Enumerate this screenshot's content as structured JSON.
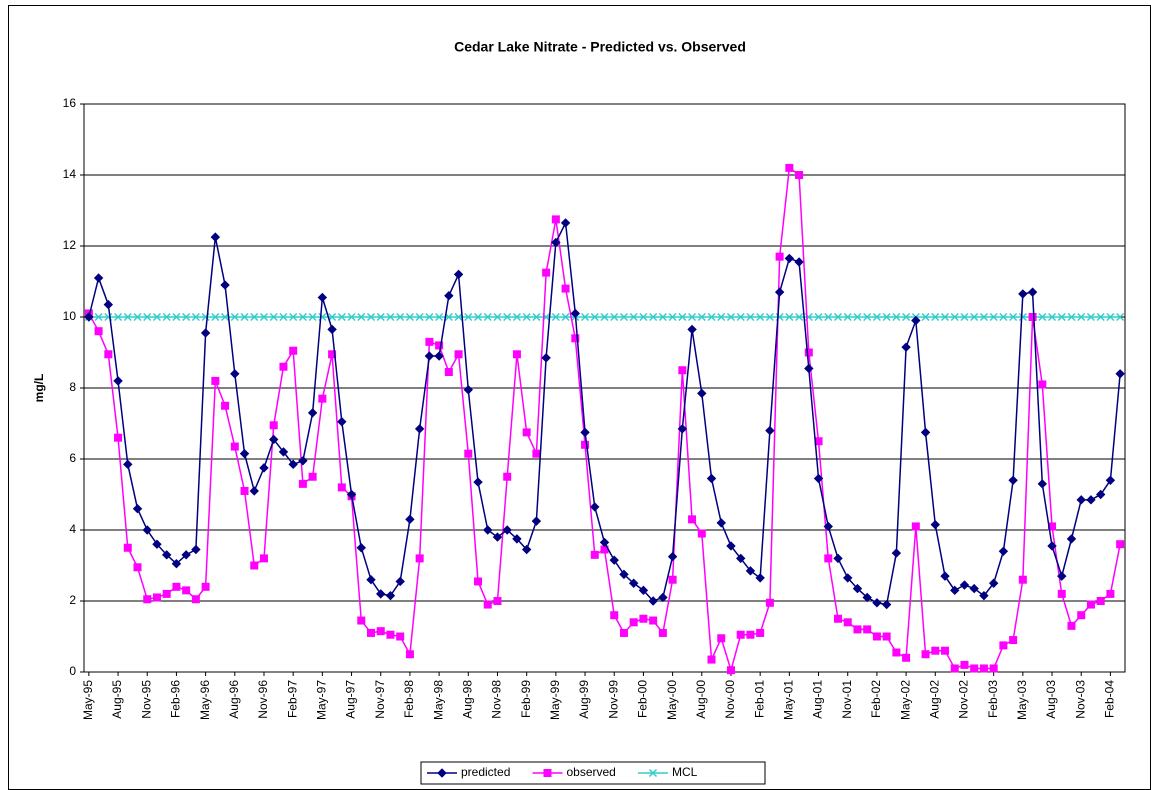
{
  "chart_data": {
    "type": "line",
    "title": "Cedar Lake Nitrate - Predicted vs. Observed",
    "y_label": "mg/L",
    "categories": [
      "May-95",
      null,
      null,
      "Aug-95",
      null,
      null,
      "Nov-95",
      null,
      null,
      "Feb-96",
      null,
      null,
      "May-96",
      null,
      null,
      "Aug-96",
      null,
      null,
      "Nov-96",
      null,
      null,
      "Feb-97",
      null,
      null,
      "May-97",
      null,
      null,
      "Aug-97",
      null,
      null,
      "Nov-97",
      null,
      null,
      "Feb-98",
      null,
      null,
      "May-98",
      null,
      null,
      "Aug-98",
      null,
      null,
      "Nov-98",
      null,
      null,
      "Feb-99",
      null,
      null,
      "May-99",
      null,
      null,
      "Aug-99",
      null,
      null,
      "Nov-99",
      null,
      null,
      "Feb-00",
      null,
      null,
      "May-00",
      null,
      null,
      "Aug-00",
      null,
      null,
      "Nov-00",
      null,
      null,
      "Feb-01",
      null,
      null,
      "May-01",
      null,
      null,
      "Aug-01",
      null,
      null,
      "Nov-01",
      null,
      null,
      "Feb-02",
      null,
      null,
      "May-02",
      null,
      null,
      "Aug-02",
      null,
      null,
      "Nov-02",
      null,
      null,
      "Feb-03",
      null,
      null,
      "May-03",
      null,
      null,
      "Aug-03",
      null,
      null,
      "Nov-03",
      null,
      null,
      "Feb-04",
      null
    ],
    "series": [
      {
        "name": "predicted",
        "color": "#000080",
        "marker": "diamond",
        "values": [
          10.0,
          11.1,
          10.35,
          8.2,
          5.85,
          4.6,
          4.0,
          3.6,
          3.3,
          3.05,
          3.3,
          3.45,
          9.55,
          12.25,
          10.9,
          8.4,
          6.15,
          5.1,
          5.75,
          6.55,
          6.2,
          5.85,
          5.95,
          7.3,
          10.55,
          9.65,
          7.05,
          5.0,
          3.5,
          2.6,
          2.2,
          2.15,
          2.55,
          4.3,
          6.85,
          8.9,
          8.9,
          10.6,
          11.2,
          7.95,
          5.35,
          4.0,
          3.8,
          4.0,
          3.75,
          3.45,
          4.25,
          8.85,
          12.1,
          12.65,
          10.1,
          6.75,
          4.65,
          3.65,
          3.15,
          2.75,
          2.5,
          2.3,
          2.0,
          2.1,
          3.25,
          6.85,
          9.65,
          7.85,
          5.45,
          4.2,
          3.55,
          3.2,
          2.85,
          2.65,
          6.8,
          10.7,
          11.65,
          11.55,
          8.55,
          5.45,
          4.1,
          3.2,
          2.65,
          2.35,
          2.1,
          1.95,
          1.9,
          3.35,
          9.15,
          9.9,
          6.75,
          4.15,
          2.7,
          2.3,
          2.45,
          2.35,
          2.15,
          2.5,
          3.4,
          5.4,
          10.65,
          10.7,
          5.3,
          3.55,
          2.7,
          3.75,
          4.85,
          4.85,
          5.0,
          5.4,
          8.4
        ]
      },
      {
        "name": "observed",
        "color": "#FF00FF",
        "marker": "square",
        "values": [
          10.1,
          9.6,
          8.95,
          6.6,
          3.5,
          2.95,
          2.05,
          2.1,
          2.2,
          2.4,
          2.3,
          2.05,
          2.4,
          8.2,
          7.5,
          6.35,
          5.1,
          3.0,
          3.2,
          6.95,
          8.6,
          9.05,
          5.3,
          5.5,
          7.7,
          8.95,
          5.2,
          4.95,
          1.45,
          1.1,
          1.15,
          1.05,
          1.0,
          0.5,
          3.2,
          9.3,
          9.2,
          8.45,
          8.95,
          6.15,
          2.55,
          1.9,
          2.0,
          5.5,
          8.95,
          6.75,
          6.15,
          11.25,
          12.75,
          10.8,
          9.4,
          6.4,
          3.3,
          3.45,
          1.6,
          1.1,
          1.4,
          1.5,
          1.45,
          1.1,
          2.6,
          8.5,
          4.3,
          3.9,
          0.35,
          0.95,
          0.05,
          1.05,
          1.05,
          1.1,
          1.95,
          11.7,
          14.2,
          14.0,
          9.0,
          6.5,
          3.2,
          1.5,
          1.4,
          1.2,
          1.2,
          1.0,
          1.0,
          0.55,
          0.4,
          4.1,
          0.5,
          0.6,
          0.6,
          0.1,
          0.2,
          0.1,
          0.1,
          0.1,
          0.75,
          0.9,
          2.6,
          10.0,
          8.1,
          4.1,
          2.2,
          1.3,
          1.6,
          1.9,
          2.0,
          2.2,
          3.6
        ]
      },
      {
        "name": "MCL",
        "color": "#33CCCC",
        "marker": "x",
        "values": [
          10,
          10,
          10,
          10,
          10,
          10,
          10,
          10,
          10,
          10,
          10,
          10,
          10,
          10,
          10,
          10,
          10,
          10,
          10,
          10,
          10,
          10,
          10,
          10,
          10,
          10,
          10,
          10,
          10,
          10,
          10,
          10,
          10,
          10,
          10,
          10,
          10,
          10,
          10,
          10,
          10,
          10,
          10,
          10,
          10,
          10,
          10,
          10,
          10,
          10,
          10,
          10,
          10,
          10,
          10,
          10,
          10,
          10,
          10,
          10,
          10,
          10,
          10,
          10,
          10,
          10,
          10,
          10,
          10,
          10,
          10,
          10,
          10,
          10,
          10,
          10,
          10,
          10,
          10,
          10,
          10,
          10,
          10,
          10,
          10,
          10,
          10,
          10,
          10,
          10,
          10,
          10,
          10,
          10,
          10,
          10,
          10,
          10,
          10,
          10,
          10,
          10,
          10,
          10,
          10,
          10,
          10
        ]
      }
    ],
    "ylim": [
      0,
      16
    ],
    "yticks": [
      0,
      2,
      4,
      6,
      8,
      10,
      12,
      14,
      16
    ],
    "grid": true,
    "legend": "bottom"
  }
}
